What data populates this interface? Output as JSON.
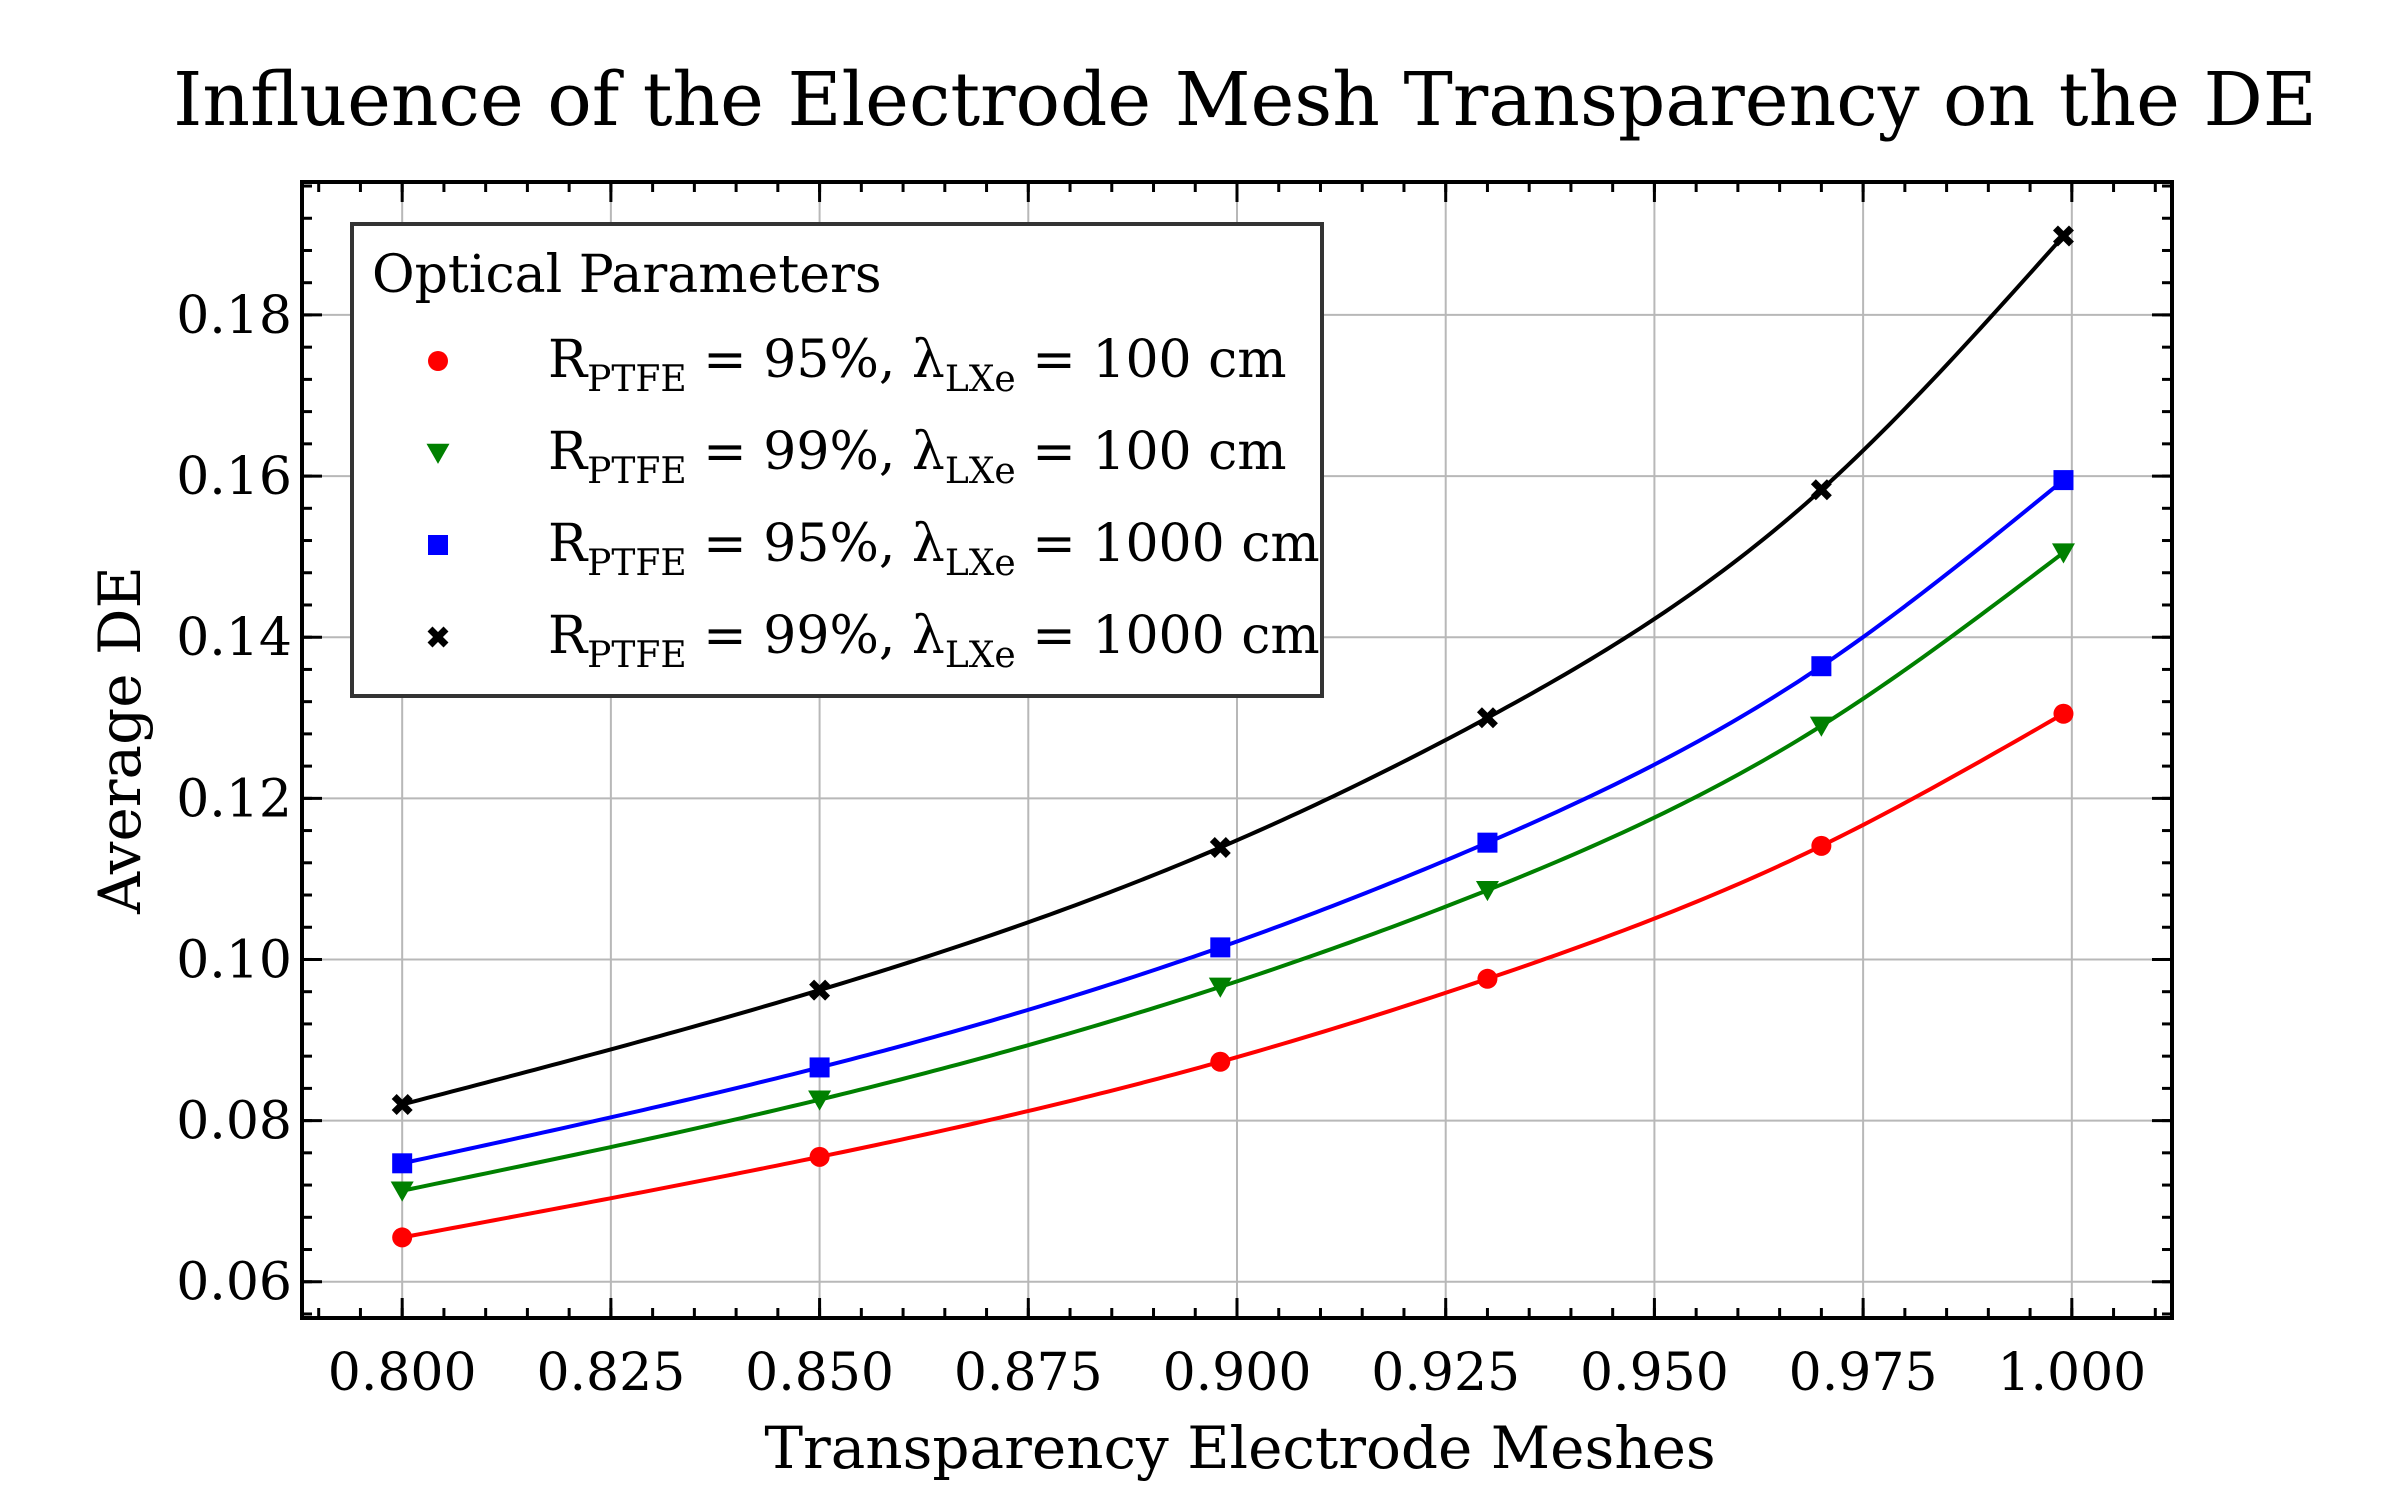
{
  "chart_data": {
    "type": "line",
    "title": "Influence of the Electrode Mesh Transparency on the DE",
    "xlabel": "Transparency Electrode Meshes",
    "ylabel": "Average DE",
    "xlim": [
      0.788,
      1.012
    ],
    "ylim": [
      0.0555,
      0.1965
    ],
    "xticks": [
      0.8,
      0.825,
      0.85,
      0.875,
      0.9,
      0.925,
      0.95,
      0.975,
      1.0
    ],
    "xtick_labels": [
      "0.800",
      "0.825",
      "0.850",
      "0.875",
      "0.900",
      "0.925",
      "0.950",
      "0.975",
      "1.000"
    ],
    "yticks": [
      0.06,
      0.08,
      0.1,
      0.12,
      0.14,
      0.16,
      0.18
    ],
    "ytick_labels": [
      "0.06",
      "0.08",
      "0.10",
      "0.12",
      "0.14",
      "0.16",
      "0.18"
    ],
    "grid": true,
    "legend": {
      "title": "Optical Parameters",
      "placement": "top-left"
    },
    "x": [
      0.8,
      0.85,
      0.898,
      0.93,
      0.97,
      0.999
    ],
    "series": [
      {
        "name": "R_PTFE = 95%, λ_LXe = 100 cm",
        "label_parts": {
          "r": "R",
          "r_sub": "PTFE",
          "r_val": " = 95%, ",
          "lam": "λ",
          "lam_sub": "LXe",
          "lam_val": " = 100 cm"
        },
        "color": "#ff0000",
        "marker": "circle",
        "values": [
          0.0655,
          0.0755,
          0.0873,
          0.0976,
          0.1141,
          0.1305
        ]
      },
      {
        "name": "R_PTFE = 99%, λ_LXe = 100 cm",
        "label_parts": {
          "r": "R",
          "r_sub": "PTFE",
          "r_val": " = 99%, ",
          "lam": "λ",
          "lam_sub": "LXe",
          "lam_val": " = 100 cm"
        },
        "color": "#008000",
        "marker": "triangle-down",
        "values": [
          0.0713,
          0.0826,
          0.0966,
          0.1086,
          0.129,
          0.1505
        ]
      },
      {
        "name": "R_PTFE = 95%, λ_LXe = 1000 cm",
        "label_parts": {
          "r": "R",
          "r_sub": "PTFE",
          "r_val": " = 95%, ",
          "lam": "λ",
          "lam_sub": "LXe",
          "lam_val": " = 1000 cm"
        },
        "color": "#0000ff",
        "marker": "square",
        "values": [
          0.0747,
          0.0866,
          0.1015,
          0.1145,
          0.1364,
          0.1595
        ]
      },
      {
        "name": "R_PTFE = 99%, λ_LXe = 1000 cm",
        "label_parts": {
          "r": "R",
          "r_sub": "PTFE",
          "r_val": " = 99%, ",
          "lam": "λ",
          "lam_sub": "LXe",
          "lam_val": " = 1000 cm"
        },
        "color": "#000000",
        "marker": "x",
        "values": [
          0.082,
          0.0962,
          0.1139,
          0.13,
          0.1583,
          0.1898
        ]
      }
    ]
  }
}
